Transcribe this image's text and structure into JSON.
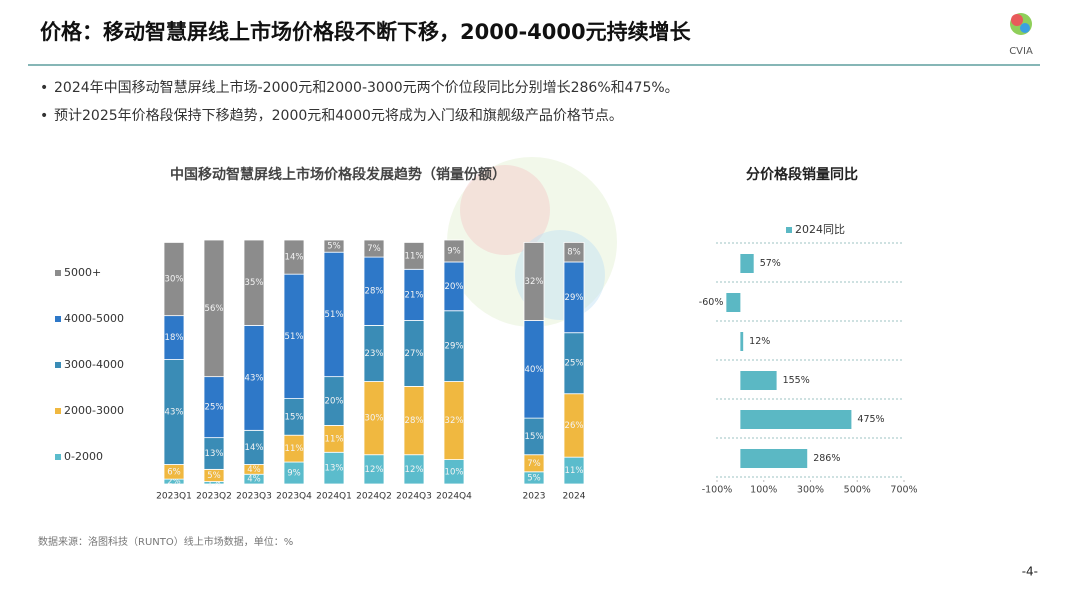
{
  "header": {
    "title": "价格：移动智慧屏线上市场价格段不断下移，2000-4000元持续增长",
    "logo": "CVIA"
  },
  "bullets": [
    "2024年中国移动智慧屏线上市场-2000元和2000-3000元两个价位段同比分别增长286%和475%。",
    "预计2025年价格段保持下移趋势，2000元和4000元将成为入门级和旗舰级产品价格节点。"
  ],
  "source": "数据来源：洛图科技（RUNTO）线上市场数据，单位：%",
  "page_number": "-4-",
  "chart_data": [
    {
      "type": "stacked-bar",
      "title": "中国移动智慧屏线上市场价格段发展趋势（销量份额）",
      "categories": [
        "2023Q1",
        "2023Q2",
        "2023Q3",
        "2023Q4",
        "2024Q1",
        "2024Q2",
        "2024Q3",
        "2024Q4",
        null,
        "2023",
        "2024"
      ],
      "series": [
        {
          "name": "0-2000",
          "color": "#5bbccc",
          "values": [
            2,
            1,
            4,
            9,
            13,
            12,
            12,
            10,
            null,
            5,
            11
          ],
          "value_labels": [
            "2%",
            "1%",
            "4%",
            "9%",
            "13%",
            "12%",
            "12%",
            "10%",
            null,
            "5%",
            "11%"
          ]
        },
        {
          "name": "2000-3000",
          "color": "#f0b840",
          "values": [
            6,
            5,
            4,
            11,
            11,
            30,
            28,
            32,
            null,
            7,
            26
          ],
          "value_labels": [
            "6%",
            "5%",
            "4%",
            "11%",
            "11%",
            "30%",
            "28%",
            "32%",
            null,
            "7%",
            "26%"
          ]
        },
        {
          "name": "3000-4000",
          "color": "#3a8cb6",
          "values": [
            43,
            13,
            14,
            15,
            20,
            23,
            27,
            29,
            null,
            15,
            25
          ],
          "value_labels": [
            "43%",
            "13%",
            "14%",
            "15%",
            "20%",
            "23%",
            "27%",
            "29%",
            null,
            "15%",
            "25%"
          ]
        },
        {
          "name": "4000-5000",
          "color": "#2e78c8",
          "values": [
            18,
            25,
            43,
            51,
            51,
            28,
            21,
            20,
            null,
            40,
            29
          ],
          "value_labels": [
            "18%",
            "25%",
            "43%",
            "51%",
            "51%",
            "28%",
            "21%",
            "20%",
            null,
            "40%",
            "29%"
          ]
        },
        {
          "name": "5000+",
          "color": "#8c8c8c",
          "values": [
            30,
            56,
            35,
            14,
            5,
            7,
            11,
            9,
            null,
            32,
            8
          ],
          "value_labels": [
            "30%",
            "56%",
            "35%",
            "14%",
            "5%",
            "7%",
            "11%",
            "9%",
            null,
            "32%",
            "8%"
          ]
        }
      ]
    },
    {
      "type": "hbar",
      "title": "分价格段销量同比",
      "categories": [
        null,
        null,
        null,
        null,
        null,
        null
      ],
      "series": [
        {
          "name": "2024同比",
          "color": "#5bb8c4",
          "values": [
            57,
            -60,
            12,
            155,
            475,
            286
          ],
          "value_labels": [
            "57%",
            "-60%",
            "12%",
            "155%",
            "475%",
            "286%"
          ]
        }
      ],
      "xlim": [
        -100,
        700
      ],
      "xticks": [
        {
          "value": -100,
          "label": "-100%"
        },
        {
          "value": 100,
          "label": "100%"
        },
        {
          "value": 300,
          "label": "300%"
        },
        {
          "value": 500,
          "label": "500%"
        },
        {
          "value": 700,
          "label": "700%"
        }
      ]
    }
  ]
}
